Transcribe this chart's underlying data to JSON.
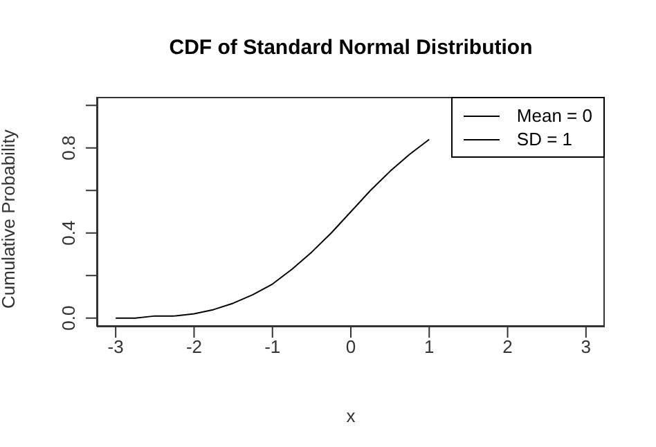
{
  "chart_data": {
    "type": "line",
    "title": "CDF of Standard Normal Distribution",
    "xlabel": "x",
    "ylabel": "Cumulative Probability",
    "x": [
      -3,
      -2.75,
      -2.5,
      -2.25,
      -2,
      -1.75,
      -1.5,
      -1.25,
      -1,
      -0.75,
      -0.5,
      -0.25,
      0,
      0.25,
      0.5,
      0.75,
      1
    ],
    "series": [
      {
        "name": "Mean = 0",
        "color": "#000000",
        "values": [
          0.0,
          0.0,
          0.01,
          0.01,
          0.02,
          0.04,
          0.07,
          0.11,
          0.16,
          0.23,
          0.31,
          0.4,
          0.5,
          0.6,
          0.69,
          0.77,
          0.84
        ]
      }
    ],
    "annotations": [
      "SD = 1"
    ],
    "xlim": [
      -3.24,
      3.24
    ],
    "xticks": [
      -3,
      -2,
      -1,
      0,
      1,
      2,
      3
    ],
    "ylim": [
      -0.04,
      1.04
    ],
    "yticks": [
      {
        "value": 0,
        "label": "0.0"
      },
      {
        "value": 0.2,
        "label": null
      },
      {
        "value": 0.4,
        "label": "0.4"
      },
      {
        "value": 0.6,
        "label": null
      },
      {
        "value": 0.8,
        "label": "0.8"
      },
      {
        "value": 1,
        "label": null
      }
    ],
    "grid": false,
    "legend": "top right",
    "marker": "none",
    "line_style": "solid"
  }
}
